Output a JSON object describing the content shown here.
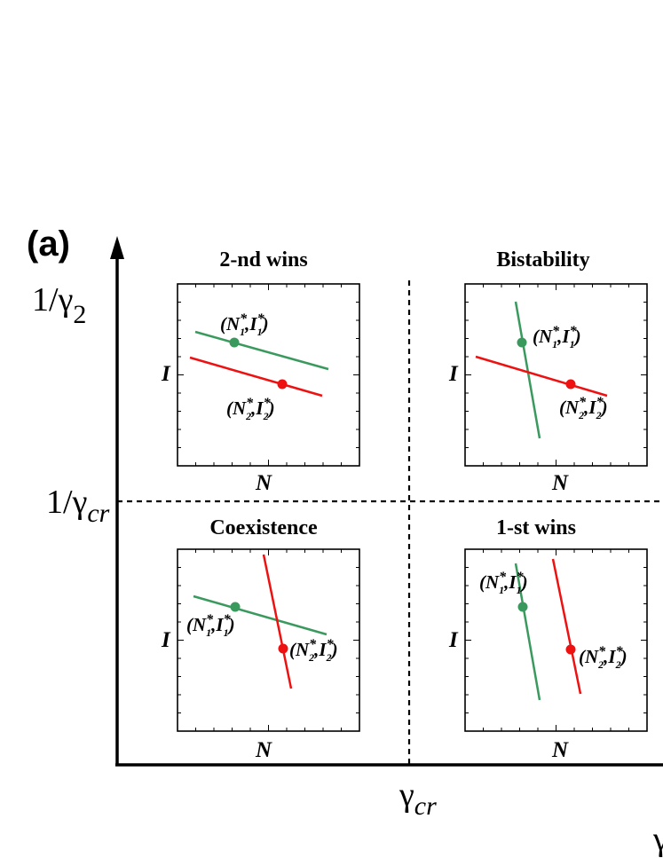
{
  "panel_label": "(a)",
  "axes": {
    "y_label_top": {
      "prefix": "1/",
      "gamma": "γ",
      "subscript": "2"
    },
    "y_label_mid": {
      "prefix": "1/",
      "gamma": "γ",
      "subscript": "cr"
    },
    "x_label_mid": {
      "gamma": "γ",
      "subscript": "cr"
    },
    "x_label_end": {
      "gamma": "γ"
    }
  },
  "quadrants": [
    {
      "id": "top-left",
      "title": "2-nd wins",
      "xlabel": "N",
      "ylabel": "I",
      "points": [
        {
          "pre": "(N",
          "s1": "1",
          "mid": ",I",
          "s2": "1",
          "post": ")",
          "star": "*"
        },
        {
          "pre": "(N",
          "s1": "2",
          "mid": ",I",
          "s2": "2",
          "post": ")",
          "star": "*"
        }
      ]
    },
    {
      "id": "top-right",
      "title": "Bistability",
      "xlabel": "N",
      "ylabel": "I",
      "points": [
        {
          "pre": "(N",
          "s1": "1",
          "mid": ",I",
          "s2": "1",
          "post": ")",
          "star": "*"
        },
        {
          "pre": "(N",
          "s1": "2",
          "mid": ",I",
          "s2": "2",
          "post": ")",
          "star": "*"
        }
      ]
    },
    {
      "id": "bottom-left",
      "title": "Coexistence",
      "xlabel": "N",
      "ylabel": "I",
      "points": [
        {
          "pre": "(N",
          "s1": "1",
          "mid": ",I",
          "s2": "1",
          "post": ")",
          "star": "*"
        },
        {
          "pre": "(N",
          "s1": "2",
          "mid": ",I",
          "s2": "2",
          "post": ")",
          "star": "*"
        }
      ]
    },
    {
      "id": "bottom-right",
      "title": "1-st wins",
      "xlabel": "N",
      "ylabel": "I",
      "points": [
        {
          "pre": "(N",
          "s1": "1",
          "mid": ",I",
          "s2": "1",
          "post": ")",
          "star": "*"
        },
        {
          "pre": "(N",
          "s1": "2",
          "mid": ",I",
          "s2": "2",
          "post": ")",
          "star": "*"
        }
      ]
    }
  ],
  "colors": {
    "species1": "#3a9a5e",
    "species2": "#ee1111",
    "axis": "#000000"
  }
}
